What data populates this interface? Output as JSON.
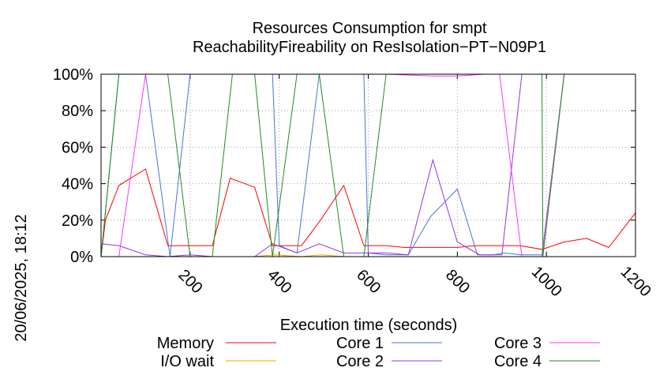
{
  "chart_data": {
    "type": "line",
    "title": "Resources Consumption for smpt",
    "subtitle": "ReachabilityFireability on ResIsolation−PT−N09P1",
    "xlabel": "Execution time (seconds)",
    "ylabel": "",
    "timestamp": "20/06/2025, 18:12",
    "xlim": [
      0,
      1200
    ],
    "ylim": [
      0,
      100
    ],
    "x_ticks": [
      200,
      400,
      600,
      800,
      1000,
      1200
    ],
    "y_ticks": [
      0,
      20,
      40,
      60,
      80,
      100
    ],
    "y_tick_labels": [
      "0%",
      "20%",
      "40%",
      "60%",
      "80%",
      "100%"
    ],
    "grid": true,
    "legend_position": "bottom",
    "series": [
      {
        "name": "Memory",
        "color": "#ff0000",
        "points": [
          [
            0,
            0
          ],
          [
            10,
            20
          ],
          [
            40,
            39
          ],
          [
            100,
            48
          ],
          [
            150,
            6
          ],
          [
            200,
            6
          ],
          [
            250,
            6
          ],
          [
            290,
            43
          ],
          [
            345,
            38
          ],
          [
            385,
            6
          ],
          [
            450,
            6
          ],
          [
            490,
            19
          ],
          [
            545,
            39
          ],
          [
            590,
            6
          ],
          [
            640,
            6
          ],
          [
            680,
            5
          ],
          [
            740,
            5
          ],
          [
            775,
            5
          ],
          [
            800,
            5
          ],
          [
            840,
            6
          ],
          [
            880,
            6
          ],
          [
            940,
            6
          ],
          [
            990,
            4
          ],
          [
            1040,
            8
          ],
          [
            1090,
            10
          ],
          [
            1140,
            5
          ],
          [
            1200,
            24
          ]
        ]
      },
      {
        "name": "I/O wait",
        "color": "#ffa500",
        "points": [
          [
            0,
            0
          ],
          [
            340,
            0
          ],
          [
            390,
            1
          ],
          [
            450,
            0
          ],
          [
            495,
            1
          ],
          [
            545,
            0
          ],
          [
            1200,
            0
          ]
        ]
      },
      {
        "name": "Core 1",
        "color": "#4a74d6",
        "points": [
          [
            0,
            0
          ],
          [
            40,
            100
          ],
          [
            100,
            100
          ],
          [
            155,
            0
          ],
          [
            200,
            100
          ],
          [
            385,
            100
          ],
          [
            400,
            6
          ],
          [
            440,
            2
          ],
          [
            490,
            100
          ],
          [
            590,
            100
          ],
          [
            600,
            2
          ],
          [
            640,
            1
          ],
          [
            690,
            1
          ],
          [
            740,
            22
          ],
          [
            800,
            37
          ],
          [
            845,
            1
          ],
          [
            880,
            1
          ],
          [
            905,
            2
          ],
          [
            945,
            1
          ],
          [
            990,
            1
          ],
          [
            1040,
            100
          ],
          [
            1200,
            100
          ]
        ]
      },
      {
        "name": "Core 2",
        "color": "#9b30e8",
        "points": [
          [
            0,
            7
          ],
          [
            40,
            6
          ],
          [
            100,
            1
          ],
          [
            150,
            0
          ],
          [
            200,
            1
          ],
          [
            250,
            0
          ],
          [
            345,
            0
          ],
          [
            385,
            7
          ],
          [
            440,
            2
          ],
          [
            490,
            7
          ],
          [
            545,
            2
          ],
          [
            590,
            2
          ],
          [
            640,
            2
          ],
          [
            690,
            1
          ],
          [
            745,
            53
          ],
          [
            800,
            8
          ],
          [
            850,
            1
          ],
          [
            900,
            1
          ],
          [
            945,
            100
          ],
          [
            990,
            100
          ],
          [
            1200,
            100
          ]
        ]
      },
      {
        "name": "Core 3",
        "color": "#ff33ff",
        "points": [
          [
            0,
            0
          ],
          [
            40,
            0
          ],
          [
            100,
            100
          ],
          [
            640,
            100
          ],
          [
            745,
            99
          ],
          [
            800,
            99
          ],
          [
            860,
            100
          ],
          [
            895,
            100
          ],
          [
            945,
            0
          ],
          [
            990,
            0
          ],
          [
            1040,
            100
          ],
          [
            1200,
            100
          ]
        ]
      },
      {
        "name": "Core 4",
        "color": "#1f8c1f",
        "points": [
          [
            0,
            0
          ],
          [
            40,
            100
          ],
          [
            150,
            100
          ],
          [
            200,
            0
          ],
          [
            250,
            0
          ],
          [
            295,
            100
          ],
          [
            345,
            100
          ],
          [
            385,
            0
          ],
          [
            440,
            100
          ],
          [
            490,
            100
          ],
          [
            545,
            0
          ],
          [
            590,
            0
          ],
          [
            640,
            100
          ],
          [
            990,
            100
          ],
          [
            992,
            0
          ],
          [
            1040,
            100
          ],
          [
            1200,
            100
          ]
        ]
      }
    ]
  }
}
